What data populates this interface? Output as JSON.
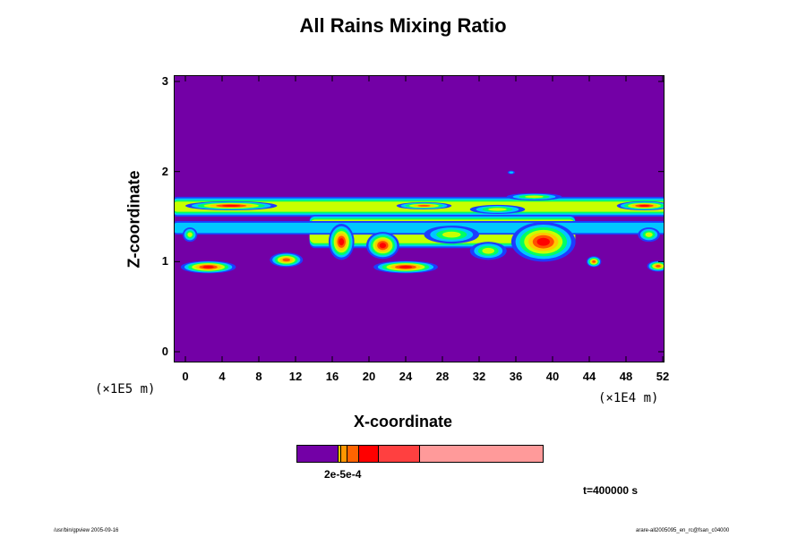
{
  "chart_data": {
    "type": "heatmap",
    "title": "All Rains Mixing Ratio",
    "xlabel": "X-coordinate",
    "ylabel": "Z-coordinate",
    "x_unit": "(×1E4 m)",
    "y_unit": "(×1E5 m)",
    "xlim": [
      0,
      52
    ],
    "ylim": [
      0,
      3
    ],
    "x_ticks": [
      "0",
      "4",
      "8",
      "12",
      "16",
      "20",
      "24",
      "28",
      "32",
      "36",
      "40",
      "44",
      "48",
      "52"
    ],
    "y_ticks": [
      "0",
      "1",
      "2",
      "3"
    ],
    "background_color": "#7300a6",
    "colorbar": {
      "label": "2e-5e-4",
      "colors": [
        "#7300a6",
        "#f0c800",
        "#ff9600",
        "#ff6400",
        "#ff0000",
        "#ff4040",
        "#ff9a9a"
      ],
      "fractions": [
        0.165,
        0.012,
        0.023,
        0.05,
        0.08,
        0.165,
        0.505
      ]
    },
    "bands": [
      {
        "x0": 0,
        "x1": 52,
        "z0": 1.5,
        "z1": 1.72,
        "level": 2
      },
      {
        "x0": 15,
        "x1": 41,
        "z0": 1.15,
        "z1": 1.52,
        "level": 2
      },
      {
        "x0": 0,
        "x1": 52,
        "z0": 1.3,
        "z1": 1.45,
        "level": 1
      }
    ],
    "cells": [
      {
        "x": 5,
        "z": 1.62,
        "rx": 5,
        "rz": 0.05,
        "level": 4
      },
      {
        "x": 50,
        "z": 1.62,
        "rx": 3,
        "rz": 0.05,
        "level": 4
      },
      {
        "x": 26,
        "z": 1.62,
        "rx": 3,
        "rz": 0.04,
        "level": 3
      },
      {
        "x": 17,
        "z": 1.22,
        "rx": 1.4,
        "rz": 0.2,
        "level": 4
      },
      {
        "x": 21.5,
        "z": 1.18,
        "rx": 1.8,
        "rz": 0.15,
        "level": 4
      },
      {
        "x": 39,
        "z": 1.22,
        "rx": 3.5,
        "rz": 0.22,
        "level": 4
      },
      {
        "x": 2.5,
        "z": 0.94,
        "rx": 3,
        "rz": 0.07,
        "level": 4
      },
      {
        "x": 24,
        "z": 0.94,
        "rx": 3.5,
        "rz": 0.07,
        "level": 4
      },
      {
        "x": 11,
        "z": 1.02,
        "rx": 1.8,
        "rz": 0.08,
        "level": 3
      },
      {
        "x": 44.5,
        "z": 1.0,
        "rx": 0.8,
        "rz": 0.06,
        "level": 3
      },
      {
        "x": 51.5,
        "z": 0.95,
        "rx": 1.2,
        "rz": 0.06,
        "level": 3
      },
      {
        "x": 33,
        "z": 1.12,
        "rx": 2,
        "rz": 0.1,
        "level": 2
      },
      {
        "x": 29,
        "z": 1.3,
        "rx": 3,
        "rz": 0.1,
        "level": 2
      },
      {
        "x": 0.5,
        "z": 1.3,
        "rx": 0.8,
        "rz": 0.08,
        "level": 2
      },
      {
        "x": 50.5,
        "z": 1.3,
        "rx": 1.2,
        "rz": 0.08,
        "level": 2
      },
      {
        "x": 35.5,
        "z": 1.99,
        "rx": 0.4,
        "rz": 0.02,
        "level": 1
      },
      {
        "x": 34,
        "z": 1.58,
        "rx": 3,
        "rz": 0.05,
        "level": 2
      },
      {
        "x": 38,
        "z": 1.72,
        "rx": 3,
        "rz": 0.04,
        "level": 2
      }
    ]
  },
  "annotations": {
    "time": "t=400000 s",
    "footer_left": "/usr/bin/gpview 2005-09-16",
    "footer_right": "arare-all2005095_en_rc@fsan_c04000"
  }
}
